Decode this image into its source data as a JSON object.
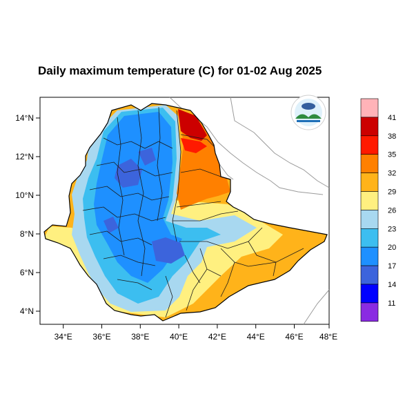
{
  "title": "Daily maximum temperature (C) for 01-02 Aug 2025",
  "lon_ticks": [
    "34°E",
    "36°E",
    "38°E",
    "40°E",
    "42°E",
    "44°E",
    "46°E",
    "48°E"
  ],
  "lat_ticks": [
    "14°N",
    "12°N",
    "10°N",
    "8°N",
    "6°N",
    "4°N"
  ],
  "colorbar": {
    "labels": [
      "41",
      "38",
      "35",
      "32",
      "29",
      "26",
      "23",
      "20",
      "17",
      "14",
      "11"
    ],
    "colors": [
      "#ffb3b8",
      "#cc0000",
      "#ff1a00",
      "#ff8000",
      "#ffb31a",
      "#fff080",
      "#a8d8f0",
      "#3cbef0",
      "#1e90ff",
      "#3c64dc",
      "#0000ff",
      "#8a2be2"
    ]
  },
  "logo": {
    "text": "Ethiopian Meteorology Institute"
  },
  "map": {
    "region": "Ethiopia",
    "lon_range": [
      33,
      48
    ],
    "lat_range": [
      3.3,
      15
    ]
  }
}
